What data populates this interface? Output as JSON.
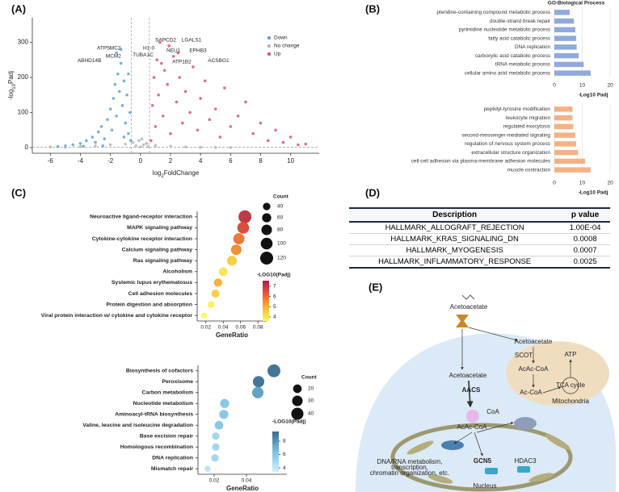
{
  "panels": [
    "(A)",
    "(B)",
    "(C)",
    "(D)",
    "(E)"
  ],
  "chart_data": [
    {
      "type": "scatter",
      "xlabel": [
        "log",
        "2",
        "FoldChange"
      ],
      "ylabel": [
        "-log",
        "10",
        "Padj"
      ],
      "xlim": [
        -7.2,
        11.9
      ],
      "ylim": [
        -16,
        370
      ],
      "xticks": [
        -6,
        -4,
        -2,
        0,
        2,
        4,
        6,
        8,
        10
      ],
      "yticks": [
        0,
        100,
        200,
        300
      ],
      "threshold_lines": {
        "x": [
          -0.6,
          0.6
        ],
        "y": [
          1.3
        ]
      },
      "legend": "upper right",
      "series": [
        {
          "name": "Down",
          "color": "#5fa3d6",
          "x": [
            -5.5,
            -5,
            -4.5,
            -4,
            -3.6,
            -3.2,
            -3,
            -2.8,
            -2.6,
            -2.4,
            -2.2,
            -2,
            -1.9,
            -1.8,
            -1.7,
            -1.6,
            -1.5,
            -1.4,
            -1.3,
            -1.2,
            -1.1,
            -1,
            -0.9,
            -0.8,
            -0.7,
            -0.65,
            -1.6,
            -1.3,
            -2.5,
            -3.8,
            -1.1,
            -0.8
          ],
          "y": [
            3,
            5,
            8,
            12,
            20,
            30,
            15,
            45,
            60,
            25,
            80,
            110,
            50,
            140,
            180,
            90,
            210,
            160,
            240,
            120,
            190,
            70,
            150,
            40,
            100,
            20,
            270,
            280,
            5,
            4,
            30,
            210
          ],
          "annotations": [
            {
              "text": "ATP5MC2",
              "x": -2.1,
              "y": 283
            },
            {
              "text": "MCM2",
              "x": -1.8,
              "y": 260
            },
            {
              "text": "ABHD14B",
              "x": -3.4,
              "y": 248
            }
          ]
        },
        {
          "name": "No change",
          "color": "#b5b5b5",
          "x": [
            -6,
            -5,
            -4,
            -3,
            -2,
            -1,
            -0.5,
            -0.3,
            0,
            0.2,
            0.4,
            0.5,
            1,
            2,
            3,
            4,
            5,
            6,
            -0.1,
            0.1
          ],
          "y": [
            2,
            1,
            3,
            5,
            8,
            10,
            15,
            5,
            2,
            8,
            12,
            3,
            6,
            4,
            2,
            1,
            0.5,
            0.3,
            20,
            25
          ],
          "annotations": []
        },
        {
          "name": "Up",
          "color": "#d6557f",
          "x": [
            0.7,
            0.8,
            0.9,
            1,
            1.1,
            1.2,
            1.3,
            1.5,
            1.6,
            1.8,
            2,
            2.2,
            2.4,
            2.6,
            2.8,
            3,
            3.3,
            3.5,
            3.8,
            4,
            4.3,
            4.6,
            5,
            5.3,
            5.6,
            6,
            6.5,
            7,
            7.5,
            8,
            8.5,
            9,
            9.5,
            10,
            10.5,
            11,
            1.9,
            2.5,
            1.4
          ],
          "y": [
            20,
            120,
            200,
            60,
            250,
            150,
            300,
            90,
            220,
            180,
            40,
            260,
            130,
            200,
            70,
            160,
            100,
            230,
            50,
            140,
            190,
            80,
            110,
            30,
            170,
            60,
            90,
            130,
            40,
            70,
            20,
            50,
            15,
            30,
            8,
            10,
            290,
            270,
            240
          ],
          "annotations": [
            {
              "text": "SAPCD2",
              "x": 1.68,
              "y": 306
            },
            {
              "text": "LGALS1",
              "x": 3.4,
              "y": 306
            },
            {
              "text": "H1-0",
              "x": 0.55,
              "y": 283
            },
            {
              "text": "NEU1",
              "x": 2.2,
              "y": 276
            },
            {
              "text": "EPHB3",
              "x": 3.83,
              "y": 276
            },
            {
              "text": "TUBA1C",
              "x": 0.17,
              "y": 264
            },
            {
              "text": "ATP1B2",
              "x": 2.75,
              "y": 244
            },
            {
              "text": "ACSBG1",
              "x": 5.2,
              "y": 248
            }
          ]
        }
      ]
    },
    {
      "type": "bar",
      "orientation": "horizontal",
      "title": "GO-Biological Process",
      "categories": [
        "pteridine-containing compound metabolic process",
        "double-strand break repair",
        "pyrimidine nucleotide metabolic process",
        "fatty acid catabolic process",
        "DNA replication",
        "carboxylic acid catabolic process",
        "tRNA metabolic process",
        "cellular amino acid metabolic process"
      ],
      "values": [
        5.5,
        7,
        7.5,
        7.8,
        8,
        8.7,
        10.5,
        13
      ],
      "color": "#8faadc",
      "xlim": [
        0,
        22
      ],
      "xticks": [
        0,
        10,
        20
      ],
      "xlabel": "-Log10 Padj",
      "grid": true
    },
    {
      "type": "bar",
      "orientation": "horizontal",
      "categories": [
        "peptidyl-tyrosine modification",
        "leukocyte migration",
        "regulated exocytosis",
        "second-messenger-mediated signaling",
        "regulation of nervous system process",
        "extracellular structure organization",
        "cell-cell adhesion via plasma-membrane adhesion molecules",
        "muscle contraction"
      ],
      "values": [
        6.5,
        6.5,
        6.8,
        7.5,
        7.8,
        8.5,
        11,
        13
      ],
      "color": "#f4b183",
      "xlim": [
        0,
        22
      ],
      "xticks": [
        0,
        10,
        20
      ],
      "xlabel": "-Log10 Padj",
      "grid": true
    },
    {
      "type": "dot",
      "categories": [
        "Neuroactive ligand-receptor interaction",
        "MAPK signaling pathway",
        "Cytokine-cytokine receptor interaction",
        "Calcium signaling pathway",
        "Ras signaling pathway",
        "Alcoholism",
        "Systemic lupus erythematosus",
        "Cell adhesion molecules",
        "Protein digestion and absorption",
        "Viral protein interaction w/ cytokine and cytokine receptor"
      ],
      "x": [
        0.065,
        0.063,
        0.058,
        0.055,
        0.05,
        0.04,
        0.034,
        0.031,
        0.026,
        0.018
      ],
      "count": [
        120,
        100,
        90,
        80,
        70,
        55,
        50,
        45,
        35,
        25
      ],
      "padj": [
        7,
        6.5,
        5.8,
        5.5,
        4.5,
        4,
        5,
        4.5,
        3.7,
        3.5
      ],
      "xlim": [
        0.01,
        0.09
      ],
      "xticks": [
        0.02,
        0.04,
        0.06,
        0.08
      ],
      "xlabel": "GeneRatio",
      "size_title": "Count",
      "size_legend": [
        40,
        60,
        80,
        100,
        120
      ],
      "colorbar_title": "-LOG10(Padj)",
      "clim": [
        3.6,
        7.55
      ],
      "cticks": [
        4,
        5,
        6,
        7
      ],
      "cmap": [
        "#fdf76a",
        "#f6b93b",
        "#e45a3a",
        "#a3234f"
      ]
    },
    {
      "type": "dot",
      "categories": [
        "Biosynthesis of cofactors",
        "Peroxisome",
        "Carbon metabolism",
        "Nucleotide metabolism",
        "Aminoacyl-tRNA biosynthesis",
        "Valine, leucine and isoleucine degradation",
        "Base excision repair",
        "Homologous recombination",
        "DNA replication",
        "Mismatch repair"
      ],
      "x": [
        0.057,
        0.0475,
        0.047,
        0.0265,
        0.026,
        0.023,
        0.021,
        0.021,
        0.0205,
        0.016
      ],
      "count": [
        45,
        35,
        35,
        22,
        22,
        20,
        15,
        15,
        15,
        10
      ],
      "padj": [
        9,
        9,
        7.5,
        6,
        6,
        6,
        5,
        5,
        5,
        4
      ],
      "xlim": [
        0.01,
        0.065
      ],
      "xticks": [
        0.02,
        0.04
      ],
      "xlabel": "GeneRatio",
      "size_title": "Count",
      "size_legend": [
        20,
        30,
        40
      ],
      "colorbar_title": "-LOG10(Padj)",
      "clim": [
        3.4,
        9.45
      ],
      "cticks": [
        4,
        6,
        8
      ],
      "cmap": [
        "#cfeefb",
        "#7cc3e4",
        "#3a6a8a"
      ]
    }
  ],
  "table": {
    "header": [
      "Description",
      "p value"
    ],
    "rows": [
      [
        "HALLMARK_ALLOGRAFT_REJECTION",
        "1.00E-04"
      ],
      [
        "HALLMARK_KRAS_SIGNALING_DN",
        "0.0008"
      ],
      [
        "HALLMARK_MYOGENESIS",
        "0.0007"
      ],
      [
        "HALLMARK_INFLAMMATORY_RESPONSE",
        "0.0025"
      ]
    ]
  },
  "diagram": {
    "labels": [
      "Acetoacetate",
      "Acetoacetate",
      "SCOT",
      "AcAc-CoA",
      "ATP",
      "Ac-CoA",
      "TCA cycle",
      "Mitochondria",
      "Acetoacetate",
      "AACS",
      "CoA",
      "AcAc-CoA",
      "GCN5",
      "HDAC3",
      "Nucleus",
      "DNA/RNA metabolism,",
      "transcription,",
      "chromatin organization, etc."
    ]
  }
}
